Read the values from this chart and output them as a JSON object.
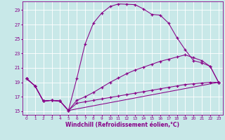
{
  "background_color": "#c8e8e8",
  "grid_color": "#aadddd",
  "line_color": "#880088",
  "xlabel": "Windchill (Refroidissement éolien,°C)",
  "xlabel_fontsize": 5.5,
  "yticks": [
    15,
    17,
    19,
    21,
    23,
    25,
    27,
    29
  ],
  "xticks": [
    0,
    1,
    2,
    3,
    4,
    5,
    6,
    7,
    8,
    9,
    10,
    11,
    12,
    13,
    14,
    15,
    16,
    17,
    18,
    19,
    20,
    21,
    22,
    23
  ],
  "xlim": [
    -0.5,
    23.5
  ],
  "ylim": [
    14.5,
    30.2
  ],
  "curve1_x": [
    0,
    1,
    2,
    3,
    4,
    5,
    6,
    7,
    8,
    9,
    10,
    11,
    12,
    13,
    14,
    15,
    16,
    17,
    18,
    19,
    20,
    21,
    22,
    23
  ],
  "curve1_y": [
    19.5,
    18.5,
    16.4,
    16.5,
    16.4,
    15.1,
    19.5,
    24.3,
    27.2,
    28.6,
    29.5,
    29.85,
    29.8,
    29.75,
    29.15,
    28.4,
    28.3,
    27.2,
    25.2,
    23.5,
    22.0,
    21.7,
    21.2,
    19.0
  ],
  "curve2_x": [
    0,
    1,
    2,
    3,
    4,
    5,
    6,
    7,
    8,
    9,
    10,
    11,
    12,
    13,
    14,
    15,
    16,
    17,
    18,
    19,
    20,
    21,
    22,
    23
  ],
  "curve2_y": [
    19.5,
    18.5,
    16.4,
    16.5,
    16.4,
    15.1,
    16.1,
    16.3,
    16.5,
    16.7,
    16.9,
    17.1,
    17.3,
    17.5,
    17.7,
    17.9,
    18.1,
    18.3,
    18.5,
    18.7,
    18.8,
    18.9,
    19.0,
    19.0
  ],
  "curve3_x": [
    0,
    1,
    2,
    3,
    4,
    5,
    6,
    7,
    8,
    9,
    10,
    11,
    12,
    13,
    14,
    15,
    16,
    17,
    18,
    19,
    20,
    21,
    22,
    23
  ],
  "curve3_y": [
    19.5,
    18.5,
    16.4,
    16.5,
    16.4,
    15.1,
    16.5,
    17.0,
    17.6,
    18.3,
    19.0,
    19.6,
    20.2,
    20.7,
    21.1,
    21.5,
    21.9,
    22.2,
    22.5,
    22.8,
    22.4,
    22.0,
    21.2,
    19.0
  ],
  "curve4_x": [
    0,
    1,
    2,
    3,
    4,
    5,
    23
  ],
  "curve4_y": [
    19.5,
    18.5,
    16.4,
    16.5,
    16.4,
    15.1,
    19.0
  ]
}
